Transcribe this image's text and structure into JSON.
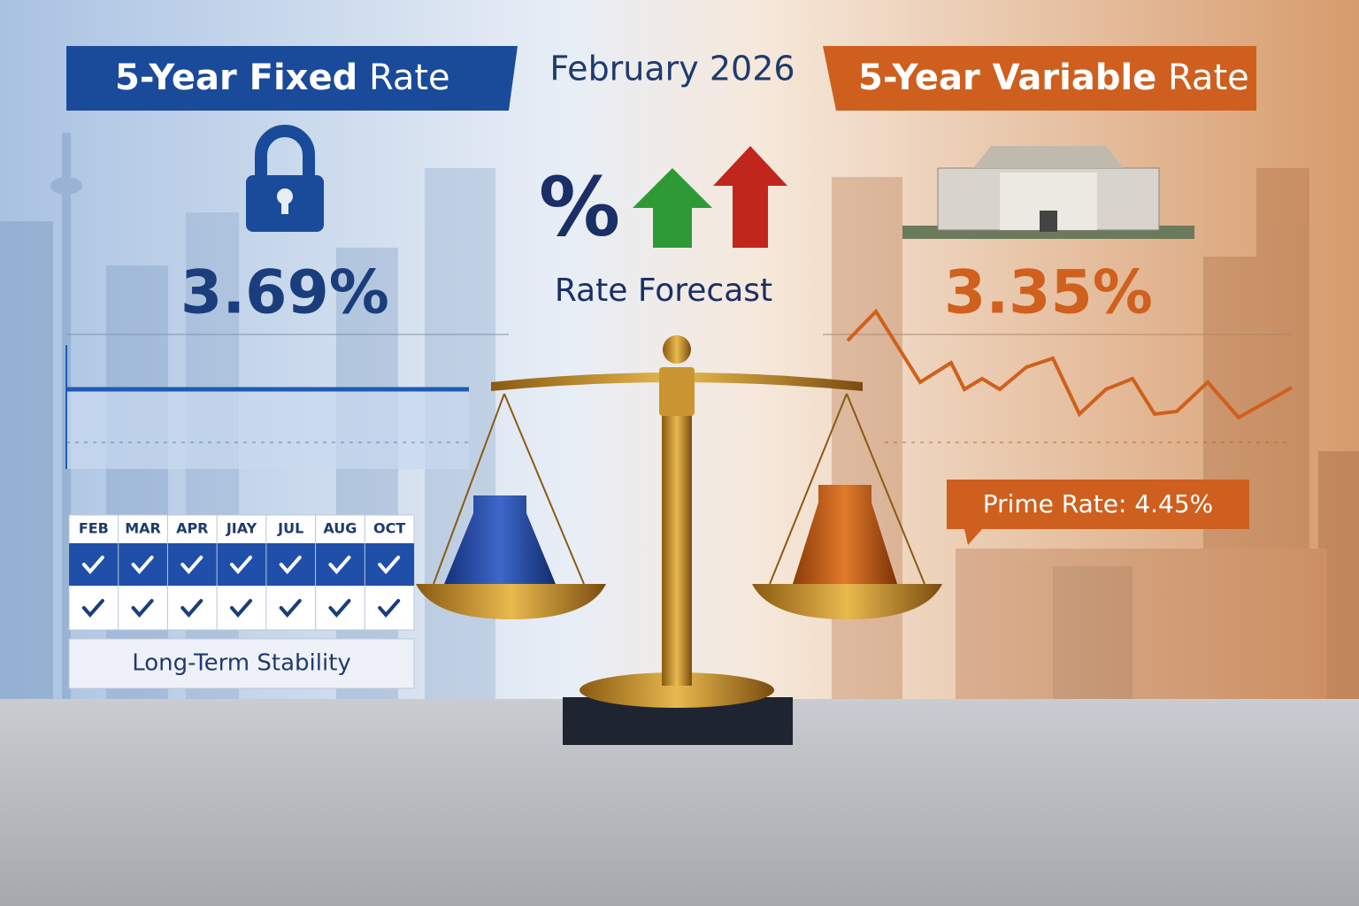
{
  "header": {
    "date": "February 2026"
  },
  "fixed": {
    "banner_bold": "5-Year Fixed",
    "banner_light": "Rate",
    "rate": "3.69%",
    "calendar": {
      "months": [
        "FEB",
        "MAR",
        "APR",
        "JIAY",
        "JUL",
        "AUG",
        "OCT"
      ]
    },
    "caption": "Long-Term Stability"
  },
  "center": {
    "symbol": "%",
    "label": "Rate Forecast"
  },
  "variable": {
    "banner_bold": "5-Year Variable",
    "banner_light": "Rate",
    "rate": "3.35%",
    "prime": "Prime Rate: 4.45%"
  }
}
